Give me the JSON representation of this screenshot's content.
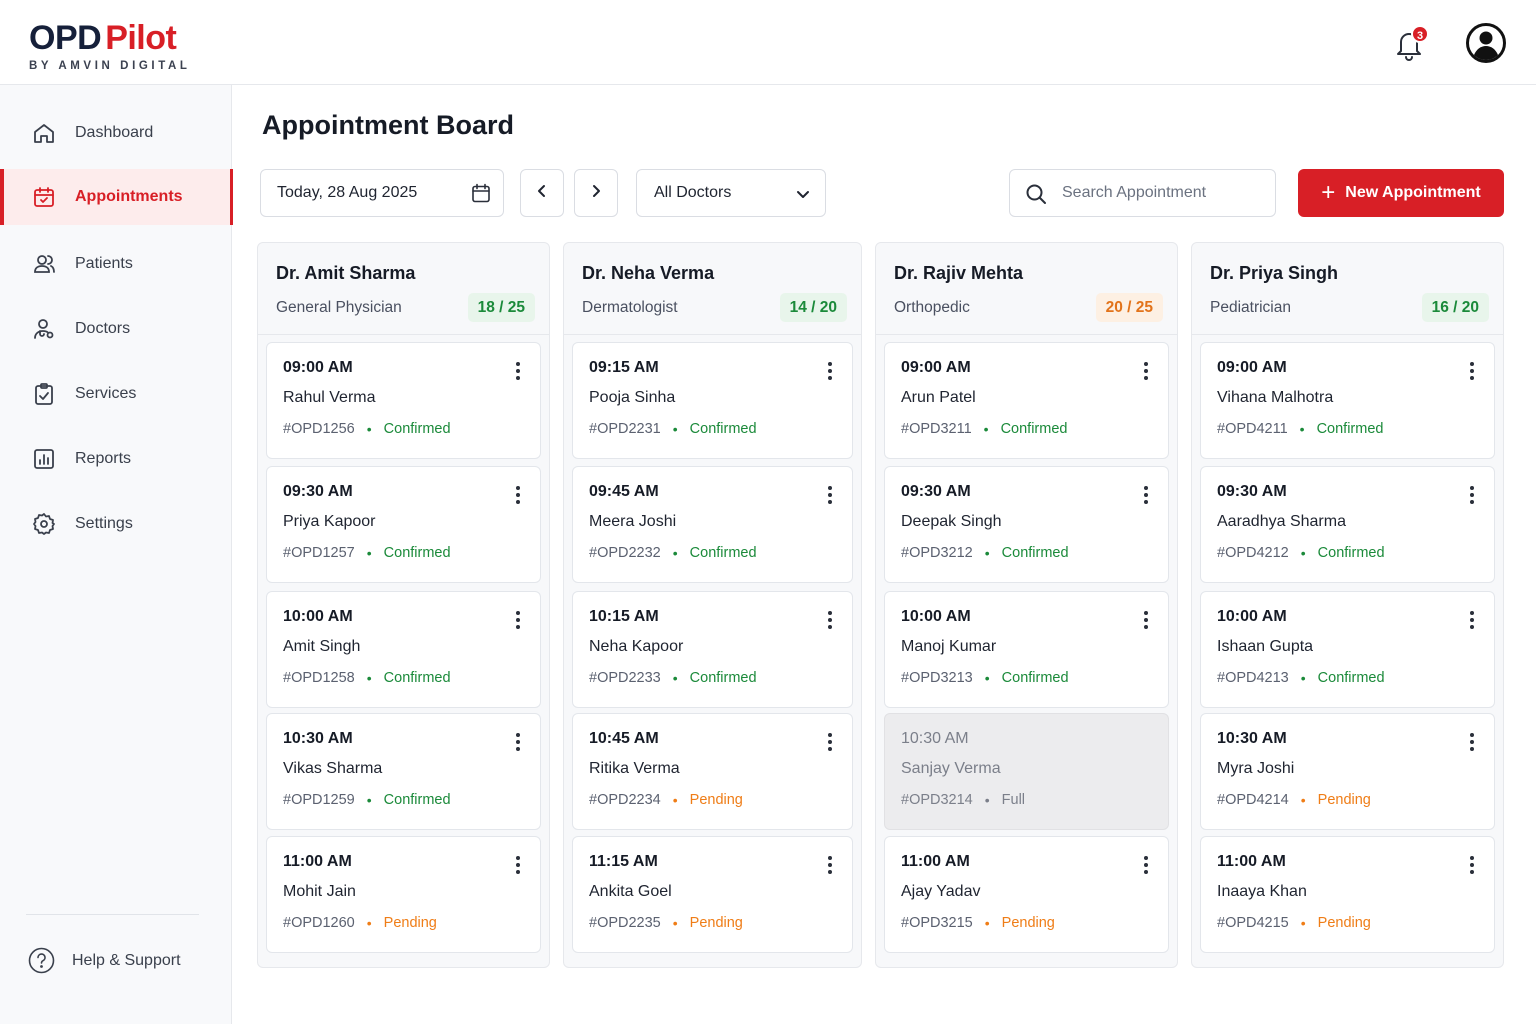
{
  "brand": {
    "name_part1": "OPD",
    "name_part2": "Pilot",
    "tagline": "BY AMVIN DIGITAL"
  },
  "header": {
    "notification_count": "3",
    "bell_icon": "bell-icon",
    "avatar_icon": "user-avatar-icon"
  },
  "sidebar": {
    "items": [
      {
        "label": "Dashboard",
        "icon": "home-icon"
      },
      {
        "label": "Appointments",
        "icon": "calendar-check-icon",
        "active": true
      },
      {
        "label": "Patients",
        "icon": "users-icon"
      },
      {
        "label": "Doctors",
        "icon": "doctor-icon"
      },
      {
        "label": "Services",
        "icon": "clipboard-icon"
      },
      {
        "label": "Reports",
        "icon": "bar-chart-icon"
      },
      {
        "label": "Settings",
        "icon": "gear-icon"
      }
    ],
    "help_label": "Help & Support"
  },
  "page": {
    "title": "Appointment Board"
  },
  "toolbar": {
    "date_value": "Today, 28 Aug 2025",
    "doctor_filter": "All Doctors",
    "search_placeholder": "Search Appointment",
    "new_button": "New Appointment"
  },
  "colors": {
    "brand_red": "#d81f26",
    "confirmed_green": "#1b8a3a",
    "pending_orange": "#ef7d17"
  },
  "columns": [
    {
      "doctor": "Dr. Amit Sharma",
      "specialty": "General Physician",
      "count": "18 / 25",
      "count_tone": "green",
      "appointments": [
        {
          "time": "09:00 AM",
          "patient": "Rahul Verma",
          "id": "#OPD1256",
          "status": "Confirmed"
        },
        {
          "time": "09:30 AM",
          "patient": "Priya Kapoor",
          "id": "#OPD1257",
          "status": "Confirmed"
        },
        {
          "time": "10:00 AM",
          "patient": "Amit Singh",
          "id": "#OPD1258",
          "status": "Confirmed"
        },
        {
          "time": "10:30 AM",
          "patient": "Vikas Sharma",
          "id": "#OPD1259",
          "status": "Confirmed"
        },
        {
          "time": "11:00 AM",
          "patient": "Mohit Jain",
          "id": "#OPD1260",
          "status": "Pending"
        }
      ]
    },
    {
      "doctor": "Dr. Neha Verma",
      "specialty": "Dermatologist",
      "count": "14 / 20",
      "count_tone": "green",
      "appointments": [
        {
          "time": "09:15 AM",
          "patient": "Pooja Sinha",
          "id": "#OPD2231",
          "status": "Confirmed"
        },
        {
          "time": "09:45 AM",
          "patient": "Meera Joshi",
          "id": "#OPD2232",
          "status": "Confirmed"
        },
        {
          "time": "10:15 AM",
          "patient": "Neha Kapoor",
          "id": "#OPD2233",
          "status": "Confirmed"
        },
        {
          "time": "10:45 AM",
          "patient": "Ritika Verma",
          "id": "#OPD2234",
          "status": "Pending"
        },
        {
          "time": "11:15 AM",
          "patient": "Ankita Goel",
          "id": "#OPD2235",
          "status": "Pending"
        }
      ]
    },
    {
      "doctor": "Dr. Rajiv Mehta",
      "specialty": "Orthopedic",
      "count": "20 / 25",
      "count_tone": "orange",
      "appointments": [
        {
          "time": "09:00 AM",
          "patient": "Arun Patel",
          "id": "#OPD3211",
          "status": "Confirmed"
        },
        {
          "time": "09:30 AM",
          "patient": "Deepak Singh",
          "id": "#OPD3212",
          "status": "Confirmed"
        },
        {
          "time": "10:00 AM",
          "patient": "Manoj Kumar",
          "id": "#OPD3213",
          "status": "Confirmed"
        },
        {
          "time": "10:30 AM",
          "patient": "Sanjay Verma",
          "id": "#OPD3214",
          "status": "Full"
        },
        {
          "time": "11:00 AM",
          "patient": "Ajay Yadav",
          "id": "#OPD3215",
          "status": "Pending"
        }
      ]
    },
    {
      "doctor": "Dr. Priya Singh",
      "specialty": "Pediatrician",
      "count": "16 / 20",
      "count_tone": "green",
      "appointments": [
        {
          "time": "09:00 AM",
          "patient": "Vihana Malhotra",
          "id": "#OPD4211",
          "status": "Confirmed"
        },
        {
          "time": "09:30 AM",
          "patient": "Aaradhya Sharma",
          "id": "#OPD4212",
          "status": "Confirmed"
        },
        {
          "time": "10:00 AM",
          "patient": "Ishaan Gupta",
          "id": "#OPD4213",
          "status": "Confirmed"
        },
        {
          "time": "10:30 AM",
          "patient": "Myra Joshi",
          "id": "#OPD4214",
          "status": "Pending"
        },
        {
          "time": "11:00 AM",
          "patient": "Inaaya Khan",
          "id": "#OPD4215",
          "status": "Pending"
        }
      ]
    }
  ]
}
